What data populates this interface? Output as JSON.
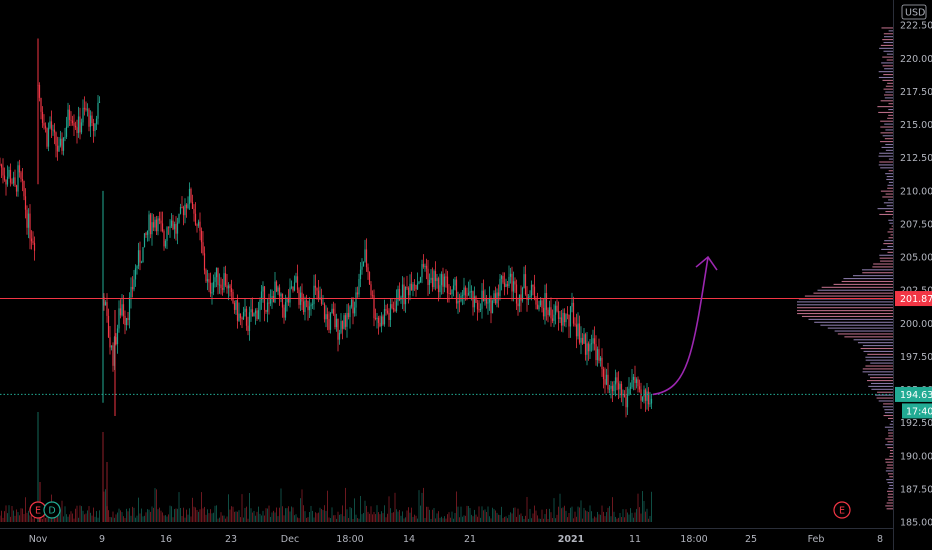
{
  "chart_data": {
    "type": "candlestick",
    "currency": "USD",
    "y_axis": {
      "range": [
        185.0,
        223.5
      ],
      "tick_labels": [
        "222.50",
        "220.00",
        "217.50",
        "215.00",
        "212.50",
        "210.00",
        "207.50",
        "205.00",
        "202.50",
        "200.00",
        "197.50",
        "195.00",
        "192.50",
        "190.00",
        "187.50",
        "185.00"
      ],
      "tick_values": [
        222.5,
        220.0,
        217.5,
        215.0,
        212.5,
        210.0,
        207.5,
        205.0,
        202.5,
        200.0,
        197.5,
        195.0,
        192.5,
        190.0,
        187.5,
        185.0
      ]
    },
    "x_axis": {
      "tick_labels": [
        "Nov",
        "9",
        "16",
        "23",
        "Dec",
        "18:00",
        "14",
        "21",
        "2021",
        "11",
        "18:00",
        "25",
        "Feb",
        "8"
      ]
    },
    "price_lines": [
      {
        "label": "201.87",
        "value": 201.87,
        "color": "#f23645",
        "style": "solid"
      },
      {
        "label": "194.63",
        "value": 194.63,
        "color": "#22ab94",
        "style": "dotted"
      }
    ],
    "countdown": {
      "label": "17:40",
      "color": "#22ab94"
    },
    "close_series": [
      {
        "segment": "early",
        "points": [
          [
            0,
            212.0
          ],
          [
            3,
            211.5
          ],
          [
            6,
            211.0
          ],
          [
            9,
            211.3
          ],
          [
            12,
            210.8
          ],
          [
            15,
            210.0
          ],
          [
            18,
            211.2
          ],
          [
            21,
            210.5
          ],
          [
            24,
            209.5
          ],
          [
            27,
            208.0
          ],
          [
            30,
            207.0
          ],
          [
            33,
            206.5
          ],
          [
            36,
            206.0
          ]
        ]
      },
      {
        "segment": "jump",
        "points": [
          [
            38,
            218.0
          ],
          [
            41,
            216.5
          ],
          [
            44,
            215.0
          ],
          [
            47,
            214.0
          ],
          [
            50,
            215.2
          ],
          [
            53,
            214.0
          ],
          [
            56,
            213.5
          ],
          [
            59,
            212.8
          ],
          [
            62,
            213.5
          ],
          [
            65,
            214.5
          ],
          [
            68,
            215.5
          ],
          [
            71,
            216.0
          ],
          [
            74,
            215.5
          ],
          [
            77,
            214.8
          ],
          [
            80,
            215.0
          ],
          [
            83,
            215.8
          ],
          [
            86,
            216.0
          ],
          [
            89,
            215.5
          ],
          [
            92,
            214.5
          ],
          [
            95,
            215.0
          ],
          [
            98,
            216.5
          ],
          [
            101,
            217.0
          ]
        ]
      },
      {
        "segment": "main",
        "points": [
          [
            104,
            202.0
          ],
          [
            107,
            200.0
          ],
          [
            110,
            198.5
          ],
          [
            113,
            197.5
          ],
          [
            116,
            199.0
          ],
          [
            119,
            200.5
          ],
          [
            122,
            201.5
          ],
          [
            125,
            200.5
          ],
          [
            128,
            201.0
          ],
          [
            131,
            202.0
          ],
          [
            134,
            203.5
          ],
          [
            137,
            204.5
          ],
          [
            140,
            205.0
          ],
          [
            143,
            205.5
          ],
          [
            146,
            206.5
          ],
          [
            149,
            207.5
          ],
          [
            152,
            207.5
          ],
          [
            155,
            208.0
          ],
          [
            158,
            207.5
          ],
          [
            161,
            207.0
          ],
          [
            164,
            206.0
          ],
          [
            167,
            207.5
          ],
          [
            170,
            208.0
          ],
          [
            173,
            207.5
          ],
          [
            176,
            207.0
          ],
          [
            179,
            207.5
          ],
          [
            182,
            208.5
          ],
          [
            185,
            209.0
          ],
          [
            188,
            209.5
          ],
          [
            191,
            209.5
          ],
          [
            194,
            208.5
          ],
          [
            197,
            207.5
          ],
          [
            200,
            206.5
          ],
          [
            203,
            205.0
          ],
          [
            206,
            203.5
          ],
          [
            209,
            202.5
          ],
          [
            212,
            203.0
          ],
          [
            215,
            203.5
          ],
          [
            218,
            203.5
          ],
          [
            221,
            203.0
          ],
          [
            224,
            203.5
          ],
          [
            227,
            203.0
          ],
          [
            230,
            202.0
          ],
          [
            233,
            201.5
          ],
          [
            236,
            201.0
          ],
          [
            239,
            200.5
          ],
          [
            242,
            200.0
          ],
          [
            245,
            200.5
          ],
          [
            248,
            200.0
          ],
          [
            251,
            200.5
          ],
          [
            254,
            200.5
          ],
          [
            257,
            201.0
          ],
          [
            260,
            201.5
          ],
          [
            263,
            202.0
          ],
          [
            266,
            201.5
          ],
          [
            269,
            201.0
          ],
          [
            272,
            202.0
          ],
          [
            275,
            202.5
          ],
          [
            278,
            202.0
          ],
          [
            281,
            201.5
          ],
          [
            284,
            201.0
          ],
          [
            287,
            201.5
          ],
          [
            290,
            202.0
          ],
          [
            293,
            202.5
          ],
          [
            296,
            203.0
          ],
          [
            299,
            202.0
          ],
          [
            302,
            201.5
          ],
          [
            305,
            201.0
          ],
          [
            308,
            201.5
          ],
          [
            311,
            202.0
          ],
          [
            314,
            202.5
          ],
          [
            317,
            202.0
          ],
          [
            320,
            201.5
          ],
          [
            323,
            201.0
          ],
          [
            326,
            200.5
          ],
          [
            329,
            200.0
          ],
          [
            332,
            200.5
          ],
          [
            335,
            200.0
          ],
          [
            338,
            199.5
          ],
          [
            341,
            200.0
          ],
          [
            344,
            200.5
          ],
          [
            347,
            200.0
          ],
          [
            350,
            201.0
          ],
          [
            353,
            201.5
          ],
          [
            356,
            202.0
          ],
          [
            359,
            203.0
          ],
          [
            362,
            204.5
          ],
          [
            365,
            205.0
          ],
          [
            368,
            204.0
          ],
          [
            371,
            202.5
          ],
          [
            374,
            201.0
          ],
          [
            377,
            200.5
          ],
          [
            380,
            200.0
          ],
          [
            383,
            200.5
          ],
          [
            386,
            201.0
          ],
          [
            389,
            200.5
          ],
          [
            392,
            201.0
          ],
          [
            395,
            201.5
          ],
          [
            398,
            202.0
          ],
          [
            401,
            202.5
          ],
          [
            404,
            202.0
          ],
          [
            407,
            202.5
          ],
          [
            410,
            203.0
          ],
          [
            413,
            203.5
          ],
          [
            416,
            203.0
          ],
          [
            419,
            203.5
          ],
          [
            422,
            204.0
          ],
          [
            425,
            204.5
          ],
          [
            428,
            203.5
          ],
          [
            431,
            203.0
          ],
          [
            434,
            203.5
          ],
          [
            437,
            203.0
          ],
          [
            440,
            202.5
          ],
          [
            443,
            203.5
          ],
          [
            446,
            203.0
          ],
          [
            449,
            202.5
          ],
          [
            452,
            202.0
          ],
          [
            455,
            202.5
          ],
          [
            458,
            202.0
          ],
          [
            461,
            201.5
          ],
          [
            464,
            202.0
          ],
          [
            467,
            202.5
          ],
          [
            470,
            202.0
          ],
          [
            473,
            201.5
          ],
          [
            476,
            201.0
          ],
          [
            479,
            201.5
          ],
          [
            482,
            202.0
          ],
          [
            485,
            201.5
          ],
          [
            488,
            201.0
          ],
          [
            491,
            201.5
          ],
          [
            494,
            202.0
          ],
          [
            497,
            202.5
          ],
          [
            500,
            203.0
          ],
          [
            503,
            203.5
          ],
          [
            506,
            203.0
          ],
          [
            509,
            203.5
          ],
          [
            512,
            203.0
          ],
          [
            515,
            202.5
          ],
          [
            518,
            202.0
          ],
          [
            521,
            202.5
          ],
          [
            524,
            203.0
          ],
          [
            527,
            202.5
          ],
          [
            530,
            202.0
          ],
          [
            533,
            202.5
          ],
          [
            536,
            202.0
          ],
          [
            539,
            201.5
          ],
          [
            542,
            201.0
          ],
          [
            545,
            201.5
          ],
          [
            548,
            201.0
          ],
          [
            551,
            200.5
          ],
          [
            554,
            201.0
          ],
          [
            557,
            200.5
          ],
          [
            560,
            200.0
          ],
          [
            563,
            200.5
          ],
          [
            566,
            200.5
          ],
          [
            569,
            200.0
          ],
          [
            572,
            201.0
          ],
          [
            575,
            200.0
          ],
          [
            578,
            199.5
          ],
          [
            581,
            199.0
          ],
          [
            584,
            198.5
          ],
          [
            587,
            198.0
          ],
          [
            590,
            199.0
          ],
          [
            593,
            198.5
          ],
          [
            596,
            198.0
          ],
          [
            599,
            197.0
          ],
          [
            602,
            196.5
          ],
          [
            605,
            196.0
          ],
          [
            608,
            195.0
          ],
          [
            611,
            194.5
          ],
          [
            614,
            195.0
          ],
          [
            617,
            195.5
          ],
          [
            620,
            195.0
          ],
          [
            623,
            194.5
          ],
          [
            626,
            194.0
          ],
          [
            629,
            195.0
          ],
          [
            632,
            196.0
          ],
          [
            635,
            195.5
          ],
          [
            638,
            194.5
          ],
          [
            641,
            194.0
          ],
          [
            644,
            194.5
          ],
          [
            647,
            194.5
          ],
          [
            650,
            194.6
          ],
          [
            653,
            194.63
          ]
        ]
      }
    ],
    "projection": {
      "description_color": "#9c27b0",
      "from": [
        653,
        194.63
      ],
      "to": [
        708,
        205.0
      ]
    },
    "events": [
      {
        "label": "E",
        "type": "earnings",
        "color": "#f23645"
      },
      {
        "label": "D",
        "type": "dividend",
        "color": "#22ab94"
      },
      {
        "label": "E",
        "type": "earnings",
        "color": "#f23645"
      }
    ],
    "colors": {
      "up": "#22ab94",
      "down": "#f23645",
      "volume_profile": "#b39ddb",
      "projection": "#9c27b0"
    }
  }
}
